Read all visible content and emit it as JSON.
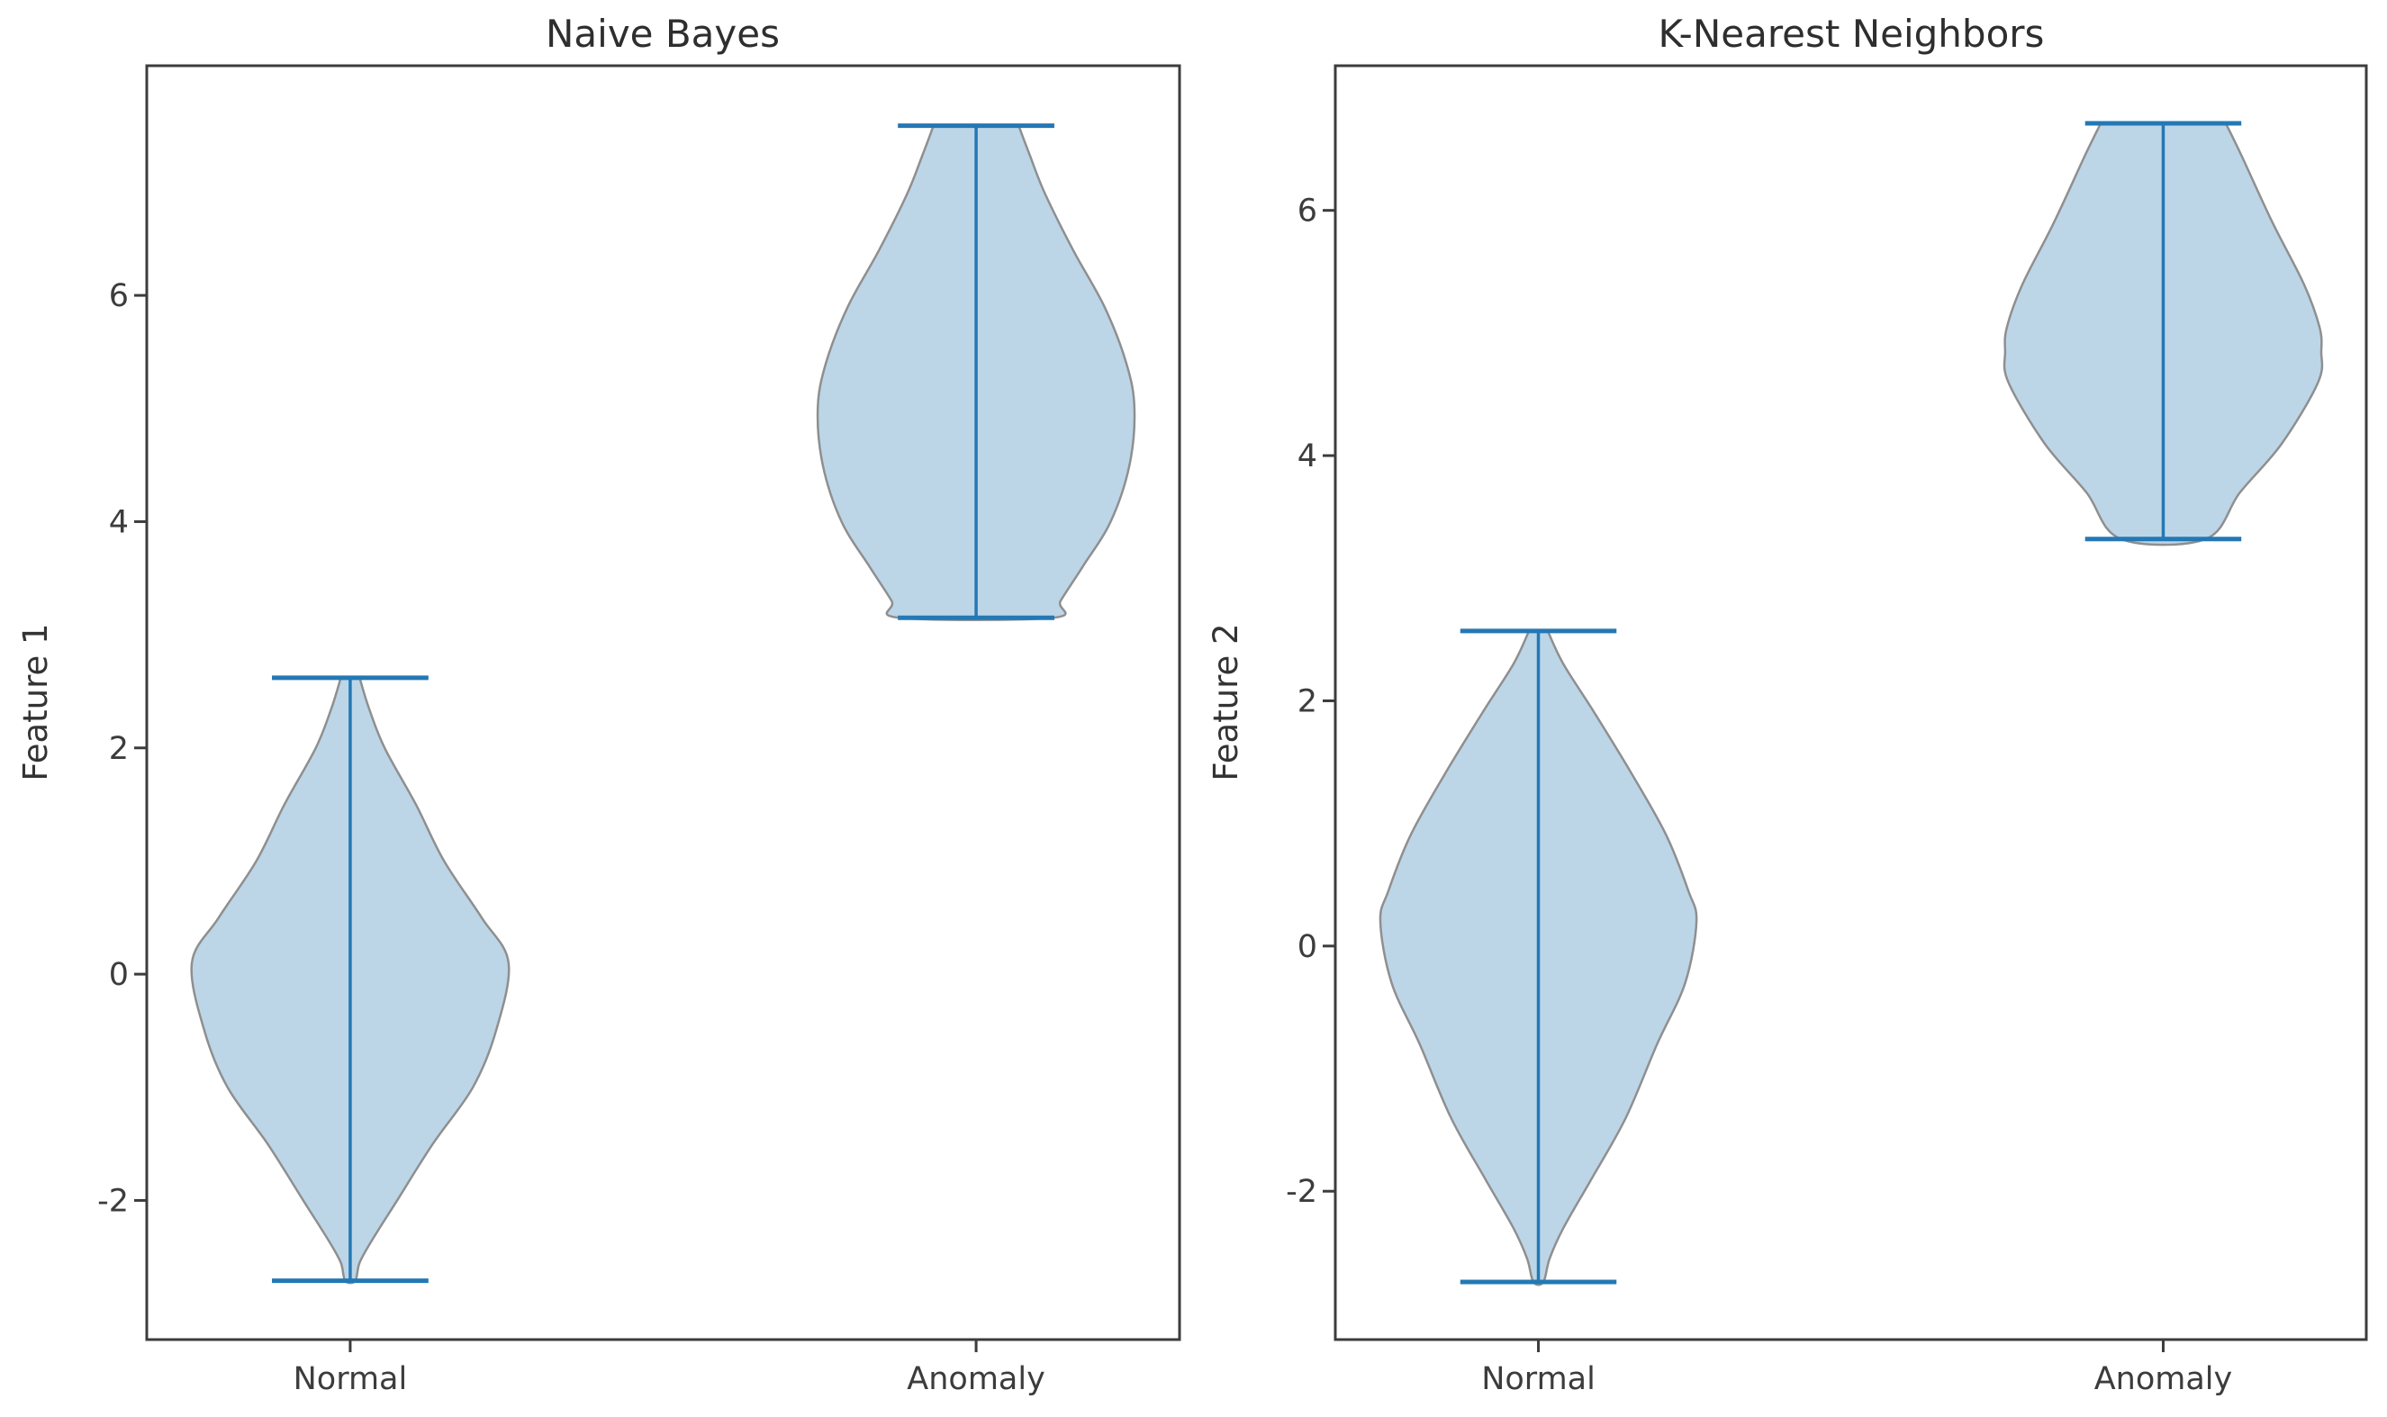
{
  "figure": {
    "background": "#ffffff"
  },
  "chart_data": {
    "type": "violin",
    "layout_hint": "two side-by-side panels, no grid, no legend, white background",
    "style": {
      "violin_fill": "#bcd6e8",
      "violin_edge": "#8f8f8f",
      "line_color": "#2478b4",
      "frame_color": "#3c3c3c",
      "text_color": "#3c3c3c"
    },
    "panels": [
      {
        "title": "Naive Bayes",
        "ylabel": "Feature 1",
        "categories": [
          "Normal",
          "Anomaly"
        ],
        "yticks": [
          6,
          4,
          2,
          0,
          -2
        ],
        "ylim": [
          -3.23,
          8.03
        ],
        "xlim": [
          0.675,
          2.325
        ],
        "violins": [
          {
            "category": "Normal",
            "position": 1,
            "min": -2.71,
            "max": 2.62,
            "peak": 0.1,
            "profile": [
              [
                2.62,
                0.015
              ],
              [
                2.35,
                0.03
              ],
              [
                2.0,
                0.055
              ],
              [
                1.5,
                0.105
              ],
              [
                1.0,
                0.15
              ],
              [
                0.5,
                0.21
              ],
              [
                0.1,
                0.253
              ],
              [
                -0.5,
                0.233
              ],
              [
                -1.0,
                0.196
              ],
              [
                -1.5,
                0.132
              ],
              [
                -2.0,
                0.075
              ],
              [
                -2.35,
                0.035
              ],
              [
                -2.55,
                0.015
              ],
              [
                -2.71,
                0.008
              ]
            ]
          },
          {
            "category": "Anomaly",
            "position": 2,
            "min": 3.15,
            "max": 7.5,
            "peak": 5.0,
            "profile": [
              [
                7.5,
                0.068
              ],
              [
                7.25,
                0.085
              ],
              [
                6.9,
                0.11
              ],
              [
                6.4,
                0.155
              ],
              [
                5.9,
                0.205
              ],
              [
                5.4,
                0.24
              ],
              [
                5.0,
                0.253
              ],
              [
                4.5,
                0.245
              ],
              [
                4.0,
                0.215
              ],
              [
                3.6,
                0.17
              ],
              [
                3.3,
                0.135
              ],
              [
                3.15,
                0.122
              ]
            ]
          }
        ]
      },
      {
        "title": "K-Nearest Neighbors",
        "ylabel": "Feature 2",
        "categories": [
          "Normal",
          "Anomaly"
        ],
        "yticks": [
          6,
          4,
          2,
          0,
          -2
        ],
        "ylim": [
          -3.21,
          7.18
        ],
        "xlim": [
          0.675,
          2.325
        ],
        "violins": [
          {
            "category": "Normal",
            "position": 1,
            "min": -2.74,
            "max": 2.57,
            "peak": 0.25,
            "profile": [
              [
                2.57,
                0.015
              ],
              [
                2.3,
                0.04
              ],
              [
                1.9,
                0.09
              ],
              [
                1.4,
                0.15
              ],
              [
                0.9,
                0.205
              ],
              [
                0.45,
                0.24
              ],
              [
                0.2,
                0.253
              ],
              [
                -0.3,
                0.235
              ],
              [
                -0.8,
                0.19
              ],
              [
                -1.4,
                0.14
              ],
              [
                -1.9,
                0.085
              ],
              [
                -2.3,
                0.04
              ],
              [
                -2.55,
                0.018
              ],
              [
                -2.74,
                0.008
              ]
            ]
          },
          {
            "category": "Anomaly",
            "position": 2,
            "min": 3.32,
            "max": 6.71,
            "peak": 4.85,
            "profile": [
              [
                6.71,
                0.1
              ],
              [
                6.45,
                0.125
              ],
              [
                5.9,
                0.175
              ],
              [
                5.4,
                0.225
              ],
              [
                5.05,
                0.25
              ],
              [
                4.85,
                0.253
              ],
              [
                4.6,
                0.248
              ],
              [
                4.1,
                0.19
              ],
              [
                3.7,
                0.123
              ],
              [
                3.32,
                0.068
              ]
            ]
          }
        ]
      }
    ]
  }
}
